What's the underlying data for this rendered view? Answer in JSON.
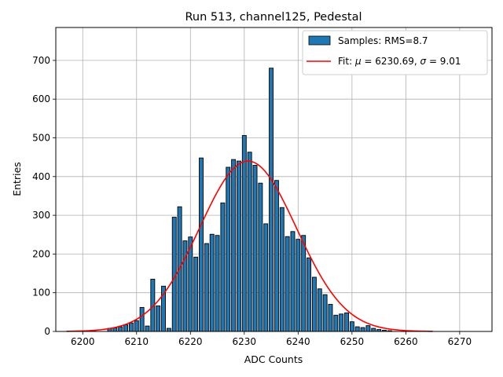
{
  "chart_data": {
    "type": "bar",
    "title": "Run 513, channel125, Pedestal",
    "xlabel": "ADC Counts",
    "ylabel": "Entries",
    "xlim": [
      6195,
      6276
    ],
    "ylim": [
      0,
      785
    ],
    "xticks": [
      6200,
      6210,
      6220,
      6230,
      6240,
      6250,
      6260,
      6270
    ],
    "yticks": [
      0,
      100,
      200,
      300,
      400,
      500,
      600,
      700
    ],
    "grid": true,
    "legend_position": "top-right",
    "histogram": {
      "name": "Samples: RMS=8.7",
      "color": "#1f77b4",
      "bin_width": 0.73,
      "x": [
        6202,
        6205,
        6206,
        6207,
        6208,
        6209,
        6210,
        6211,
        6212,
        6213,
        6214,
        6215,
        6216,
        6217,
        6218,
        6219,
        6220,
        6221,
        6222,
        6223,
        6224,
        6225,
        6226,
        6227,
        6228,
        6229,
        6230,
        6231,
        6232,
        6233,
        6234,
        6235,
        6236,
        6237,
        6238,
        6239,
        6240,
        6241,
        6242,
        6243,
        6244,
        6245,
        6246,
        6247,
        6248,
        6249,
        6250,
        6251,
        6252,
        6253,
        6254,
        6255,
        6256,
        6257
      ],
      "values": [
        3,
        8,
        9,
        12,
        17,
        22,
        28,
        62,
        14,
        135,
        66,
        117,
        8,
        295,
        322,
        234,
        244,
        192,
        448,
        227,
        251,
        248,
        332,
        424,
        444,
        440,
        506,
        463,
        429,
        383,
        278,
        680,
        390,
        320,
        245,
        258,
        238,
        248,
        190,
        140,
        110,
        95,
        70,
        42,
        45,
        48,
        25,
        12,
        10,
        15,
        8,
        5,
        3,
        2
      ]
    },
    "fit": {
      "name": "Fit: $\\mu$ = 6230.69, $\\sigma$ = 9.01",
      "color": "#ff0000",
      "mu": 6230.69,
      "sigma": 9.01,
      "amplitude": 440,
      "x_range": [
        6197,
        6265
      ]
    }
  }
}
